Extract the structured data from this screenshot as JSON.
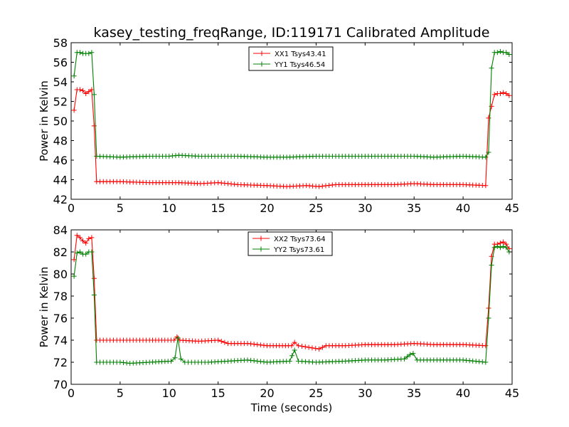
{
  "chart_data": [
    {
      "type": "line",
      "title": "kasey_testing_freqRange, ID:119171 Calibrated Amplitude",
      "xlabel": "",
      "ylabel": "Power in Kelvin",
      "xlim": [
        0,
        45
      ],
      "ylim": [
        42,
        58
      ],
      "xticks": [
        "0",
        "5",
        "10",
        "15",
        "20",
        "25",
        "30",
        "35",
        "40",
        "45"
      ],
      "yticks": [
        "42",
        "44",
        "46",
        "48",
        "50",
        "52",
        "54",
        "56",
        "58"
      ],
      "legend_position": "top-center",
      "grid": false,
      "series": [
        {
          "name": "XX1 Tsys43.41",
          "color": "#ff0000",
          "points": [
            [
              0.3,
              51.1
            ],
            [
              0.6,
              53.2
            ],
            [
              0.9,
              53.2
            ],
            [
              1.2,
              53.1
            ],
            [
              1.5,
              52.8
            ],
            [
              1.8,
              53.0
            ],
            [
              2.1,
              53.2
            ],
            [
              2.35,
              49.5
            ],
            [
              2.6,
              43.8
            ],
            [
              5,
              43.8
            ],
            [
              8,
              43.7
            ],
            [
              11,
              43.7
            ],
            [
              13.2,
              43.6
            ],
            [
              15,
              43.7
            ],
            [
              17,
              43.5
            ],
            [
              20,
              43.4
            ],
            [
              22,
              43.3
            ],
            [
              24,
              43.4
            ],
            [
              25.3,
              43.3
            ],
            [
              27,
              43.5
            ],
            [
              30,
              43.5
            ],
            [
              33,
              43.5
            ],
            [
              35,
              43.6
            ],
            [
              37,
              43.5
            ],
            [
              40,
              43.5
            ],
            [
              42.3,
              43.4
            ],
            [
              42.6,
              50.3
            ],
            [
              42.9,
              51.5
            ],
            [
              43.2,
              52.7
            ],
            [
              43.5,
              52.8
            ],
            [
              43.8,
              52.8
            ],
            [
              44.1,
              52.9
            ],
            [
              44.4,
              52.8
            ],
            [
              44.7,
              52.6
            ]
          ]
        },
        {
          "name": "YY1 Tsys46.54",
          "color": "#008000",
          "points": [
            [
              0.3,
              54.6
            ],
            [
              0.6,
              57.0
            ],
            [
              0.9,
              57.0
            ],
            [
              1.2,
              56.9
            ],
            [
              1.5,
              56.9
            ],
            [
              1.8,
              56.9
            ],
            [
              2.1,
              57.0
            ],
            [
              2.35,
              52.7
            ],
            [
              2.6,
              46.4
            ],
            [
              5,
              46.3
            ],
            [
              8,
              46.4
            ],
            [
              10,
              46.4
            ],
            [
              11,
              46.5
            ],
            [
              13,
              46.4
            ],
            [
              15,
              46.4
            ],
            [
              17,
              46.4
            ],
            [
              20,
              46.3
            ],
            [
              22,
              46.3
            ],
            [
              25,
              46.4
            ],
            [
              27,
              46.4
            ],
            [
              30,
              46.4
            ],
            [
              33,
              46.4
            ],
            [
              35,
              46.4
            ],
            [
              37,
              46.3
            ],
            [
              40,
              46.4
            ],
            [
              42.3,
              46.3
            ],
            [
              42.6,
              46.8
            ],
            [
              42.9,
              55.4
            ],
            [
              43.2,
              57.0
            ],
            [
              43.5,
              57.0
            ],
            [
              43.8,
              57.1
            ],
            [
              44.1,
              57.0
            ],
            [
              44.4,
              57.0
            ],
            [
              44.7,
              56.8
            ]
          ]
        }
      ]
    },
    {
      "type": "line",
      "title": "",
      "xlabel": "Time (seconds)",
      "ylabel": "Power in Kelvin",
      "xlim": [
        0,
        45
      ],
      "ylim": [
        70,
        84
      ],
      "xticks": [
        "0",
        "5",
        "10",
        "15",
        "20",
        "25",
        "30",
        "35",
        "40",
        "45"
      ],
      "yticks": [
        "70",
        "72",
        "74",
        "76",
        "78",
        "80",
        "82",
        "84"
      ],
      "legend_position": "top-center",
      "grid": false,
      "series": [
        {
          "name": "XX2 Tsys73.64",
          "color": "#ff0000",
          "points": [
            [
              0.3,
              81.3
            ],
            [
              0.6,
              83.5
            ],
            [
              0.9,
              83.3
            ],
            [
              1.2,
              83.0
            ],
            [
              1.5,
              82.8
            ],
            [
              1.8,
              83.2
            ],
            [
              2.1,
              83.3
            ],
            [
              2.35,
              79.6
            ],
            [
              2.6,
              74.0
            ],
            [
              5,
              74.0
            ],
            [
              8,
              74.0
            ],
            [
              10.5,
              74.0
            ],
            [
              10.8,
              74.3
            ],
            [
              11.1,
              74.0
            ],
            [
              13,
              73.9
            ],
            [
              15,
              74.0
            ],
            [
              16,
              73.7
            ],
            [
              18,
              73.7
            ],
            [
              20,
              73.5
            ],
            [
              22.5,
              73.5
            ],
            [
              22.8,
              73.8
            ],
            [
              23.2,
              73.5
            ],
            [
              25.3,
              73.2
            ],
            [
              26,
              73.5
            ],
            [
              28,
              73.5
            ],
            [
              30,
              73.6
            ],
            [
              33,
              73.6
            ],
            [
              35,
              73.7
            ],
            [
              37,
              73.6
            ],
            [
              40,
              73.6
            ],
            [
              42.3,
              73.5
            ],
            [
              42.6,
              76.9
            ],
            [
              42.9,
              81.6
            ],
            [
              43.2,
              82.7
            ],
            [
              43.5,
              82.7
            ],
            [
              43.8,
              82.8
            ],
            [
              44.1,
              82.9
            ],
            [
              44.4,
              82.7
            ],
            [
              44.7,
              82.3
            ]
          ]
        },
        {
          "name": "YY2 Tsys73.61",
          "color": "#008000",
          "points": [
            [
              0.3,
              79.8
            ],
            [
              0.6,
              81.9
            ],
            [
              0.9,
              82.0
            ],
            [
              1.2,
              81.8
            ],
            [
              1.5,
              81.8
            ],
            [
              1.8,
              82.0
            ],
            [
              2.1,
              82.0
            ],
            [
              2.35,
              78.1
            ],
            [
              2.6,
              72.0
            ],
            [
              5,
              72.0
            ],
            [
              6,
              71.9
            ],
            [
              8,
              72.0
            ],
            [
              10.2,
              72.1
            ],
            [
              10.6,
              72.4
            ],
            [
              10.9,
              74.2
            ],
            [
              11.2,
              72.3
            ],
            [
              11.6,
              72.0
            ],
            [
              14,
              72.0
            ],
            [
              16,
              72.1
            ],
            [
              18,
              72.2
            ],
            [
              19,
              72.1
            ],
            [
              20,
              72.0
            ],
            [
              22.3,
              72.1
            ],
            [
              22.8,
              73.1
            ],
            [
              23.2,
              72.1
            ],
            [
              25,
              72.0
            ],
            [
              28,
              72.1
            ],
            [
              30,
              72.2
            ],
            [
              32,
              72.2
            ],
            [
              34,
              72.3
            ],
            [
              34.6,
              72.7
            ],
            [
              34.9,
              72.8
            ],
            [
              35.3,
              72.2
            ],
            [
              37,
              72.2
            ],
            [
              40,
              72.2
            ],
            [
              42.3,
              72.0
            ],
            [
              42.6,
              76.0
            ],
            [
              42.9,
              80.8
            ],
            [
              43.2,
              82.4
            ],
            [
              43.5,
              82.5
            ],
            [
              43.8,
              82.4
            ],
            [
              44.1,
              82.5
            ],
            [
              44.4,
              82.4
            ],
            [
              44.7,
              82.0
            ]
          ]
        }
      ]
    }
  ]
}
